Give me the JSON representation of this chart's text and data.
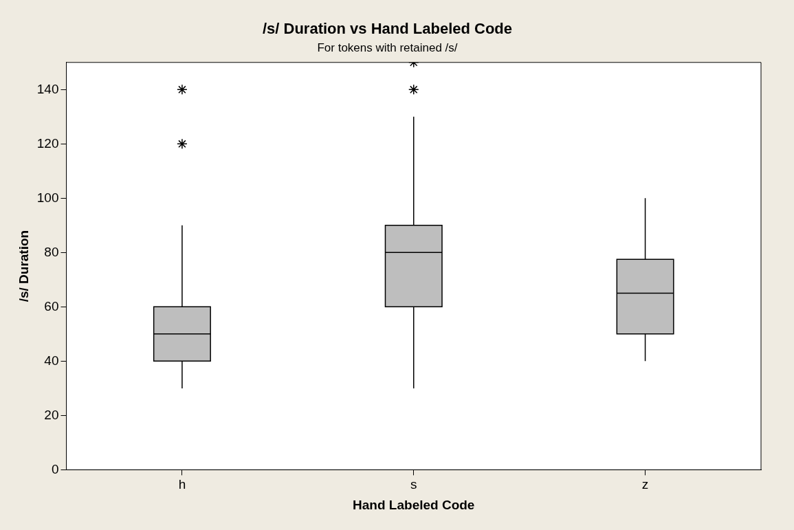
{
  "chart_data": {
    "type": "box",
    "title": "/s/ Duration vs Hand Labeled Code",
    "subtitle": "For tokens with retained /s/",
    "xlabel": "Hand Labeled Code",
    "ylabel": "/s/ Duration",
    "categories": [
      "h",
      "s",
      "z"
    ],
    "color": "#bebebe",
    "marker": "star",
    "grid": false,
    "ylim": [
      0,
      150
    ],
    "yticks": [
      0,
      20,
      40,
      60,
      80,
      100,
      120,
      140
    ],
    "boxes": [
      {
        "low": 30,
        "q1": 40,
        "median": 50,
        "q3": 60,
        "high": 90,
        "outliers": [
          120,
          140
        ]
      },
      {
        "low": 30,
        "q1": 60,
        "median": 80,
        "q3": 90,
        "high": 130,
        "outliers": [
          140,
          150
        ]
      },
      {
        "low": 40,
        "q1": 50,
        "median": 65,
        "q3": 77.5,
        "high": 100
      }
    ]
  }
}
